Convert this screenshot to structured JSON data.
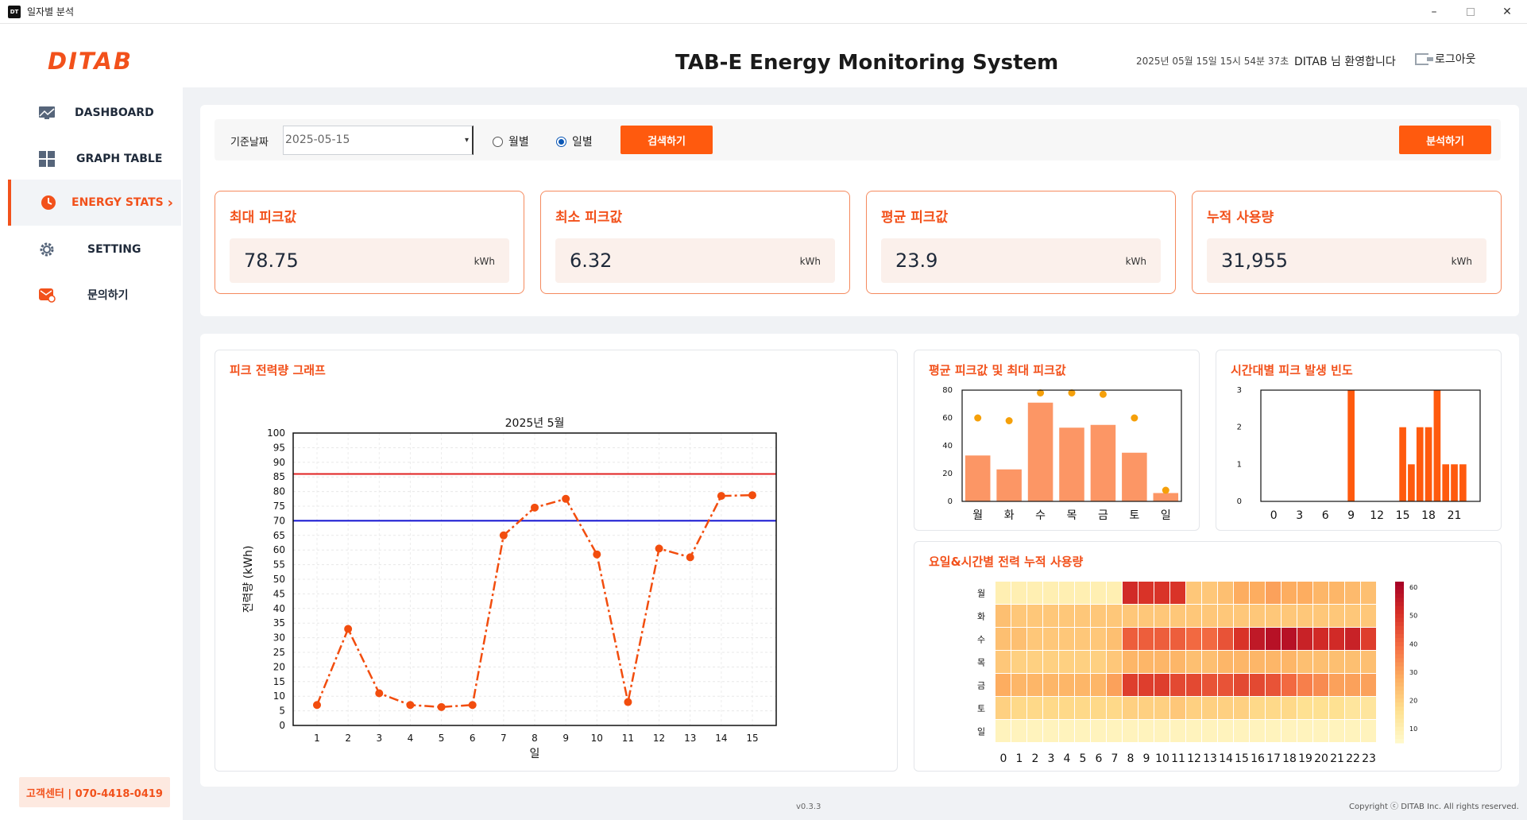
{
  "window": {
    "title": "일자별 분석",
    "icon_text": "DT"
  },
  "header": {
    "logo": "DITAB",
    "title": "TAB-E Energy Monitoring System",
    "datetime": "2025년 05월 15일 15시 54분 37초",
    "welcome": "DITAB 님 환영합니다",
    "logout": "로그아웃"
  },
  "sidebar": {
    "items": [
      {
        "label": "DASHBOARD",
        "icon": "monitor-icon"
      },
      {
        "label": "GRAPH TABLE",
        "icon": "grid-icon"
      },
      {
        "label": "ENERGY STATS",
        "icon": "clock-icon",
        "active": true
      },
      {
        "label": "SETTING",
        "icon": "gear-icon"
      },
      {
        "label": "문의하기",
        "icon": "mail-icon"
      }
    ],
    "support": "고객센터 | 070-4418-0419"
  },
  "search": {
    "date_label": "기준날짜",
    "date_value": "2025-05-15",
    "radio_monthly": "월별",
    "radio_daily": "일별",
    "selected": "일별",
    "search_button": "검색하기",
    "analyze_button": "분석하기"
  },
  "stats": [
    {
      "title": "최대 피크값",
      "value": "78.75",
      "unit": "kWh"
    },
    {
      "title": "최소 피크값",
      "value": "6.32",
      "unit": "kWh"
    },
    {
      "title": "평균 피크값",
      "value": "23.9",
      "unit": "kWh"
    },
    {
      "title": "누적 사용량",
      "value": "31,955",
      "unit": "kWh"
    }
  ],
  "panels": {
    "peak_graph": "피크 전력량 그래프",
    "avg_max": "평균 피크값 및 최대 피크값",
    "hourly_freq": "시간대별 피크 발생 빈도",
    "heatmap": "요일&시간별 전력 누적 사용량"
  },
  "colors": {
    "accent": "#f2511b",
    "button": "#ff5a0e",
    "line": "#f24d0e",
    "limit_red": "#e02020",
    "limit_blue": "#1010d0",
    "bar": "#fc9665",
    "bar_dot": "#f5a00a",
    "freq_bar": "#ff5a0e"
  },
  "chart_data": [
    {
      "type": "line",
      "title": "2025년 5월",
      "xlabel": "일",
      "ylabel": "전력량 (kWh)",
      "x": [
        1,
        2,
        3,
        4,
        5,
        6,
        7,
        8,
        9,
        10,
        11,
        12,
        13,
        14,
        15
      ],
      "values": [
        7,
        33,
        11,
        7,
        6.3,
        7,
        65,
        74.5,
        77.5,
        58.5,
        8,
        60.5,
        57.5,
        78.5,
        78.75
      ],
      "ylim": [
        0,
        100
      ],
      "yticks": [
        0,
        5,
        10,
        15,
        20,
        25,
        30,
        35,
        40,
        45,
        50,
        55,
        60,
        65,
        70,
        75,
        80,
        85,
        90,
        95,
        100
      ],
      "reference_lines": [
        86,
        70
      ],
      "grid": true
    },
    {
      "type": "bar",
      "categories": [
        "월",
        "화",
        "수",
        "목",
        "금",
        "토",
        "일"
      ],
      "series": [
        {
          "values": [
            33,
            23,
            71,
            53,
            55,
            35,
            6
          ]
        },
        {
          "values": [
            60,
            58,
            78,
            78,
            77,
            60,
            8
          ]
        }
      ],
      "ylim": [
        0,
        80
      ],
      "yticks": [
        0,
        20,
        40,
        60,
        80
      ]
    },
    {
      "type": "bar",
      "x": [
        0,
        1,
        2,
        3,
        4,
        5,
        6,
        7,
        8,
        9,
        10,
        11,
        12,
        13,
        14,
        15,
        16,
        17,
        18,
        19,
        20,
        21,
        22,
        23
      ],
      "values": [
        0,
        0,
        0,
        0,
        0,
        0,
        0,
        0,
        0,
        3,
        0,
        0,
        0,
        0,
        0,
        2,
        1,
        2,
        2,
        3,
        1,
        1,
        1,
        0
      ],
      "xticks": [
        0,
        3,
        6,
        9,
        12,
        15,
        18,
        21
      ],
      "yticks": [
        0,
        1,
        2,
        3
      ],
      "ylim": [
        0,
        3
      ]
    },
    {
      "type": "heatmap",
      "rows": [
        "월",
        "화",
        "수",
        "목",
        "금",
        "토",
        "일"
      ],
      "columns": [
        "0",
        "1",
        "2",
        "3",
        "4",
        "5",
        "6",
        "7",
        "8",
        "9",
        "10",
        "11",
        "12",
        "13",
        "14",
        "15",
        "16",
        "17",
        "18",
        "19",
        "20",
        "21",
        "22",
        "23"
      ],
      "values": [
        [
          10,
          10,
          10,
          10,
          10,
          10,
          10,
          10,
          52,
          50,
          50,
          50,
          22,
          22,
          24,
          28,
          28,
          30,
          28,
          28,
          26,
          26,
          25,
          24
        ],
        [
          24,
          22,
          22,
          22,
          22,
          22,
          22,
          22,
          22,
          22,
          22,
          22,
          22,
          22,
          22,
          22,
          22,
          22,
          22,
          22,
          22,
          22,
          22,
          22
        ],
        [
          24,
          24,
          22,
          22,
          22,
          22,
          22,
          24,
          42,
          42,
          42,
          42,
          40,
          40,
          44,
          50,
          56,
          58,
          58,
          54,
          52,
          52,
          54,
          48
        ],
        [
          22,
          20,
          20,
          20,
          20,
          20,
          20,
          22,
          26,
          26,
          26,
          26,
          24,
          24,
          26,
          26,
          26,
          26,
          26,
          24,
          24,
          24,
          24,
          24
        ],
        [
          28,
          26,
          26,
          26,
          26,
          26,
          26,
          30,
          48,
          48,
          48,
          46,
          46,
          44,
          44,
          46,
          46,
          44,
          40,
          36,
          34,
          30,
          30,
          30
        ],
        [
          20,
          18,
          18,
          18,
          18,
          18,
          18,
          18,
          20,
          20,
          20,
          22,
          20,
          20,
          20,
          20,
          18,
          18,
          18,
          16,
          16,
          16,
          14,
          14
        ],
        [
          8,
          8,
          8,
          8,
          8,
          8,
          8,
          8,
          8,
          8,
          8,
          8,
          8,
          8,
          8,
          8,
          8,
          8,
          8,
          8,
          8,
          8,
          8,
          8
        ]
      ],
      "colorbar_ticks": [
        10,
        20,
        30,
        40,
        50,
        60
      ],
      "vmin": 5,
      "vmax": 62
    }
  ],
  "footer": {
    "version": "v0.3.3",
    "copyright": "Copyright ⓒ DITAB Inc. All rights reserved."
  }
}
